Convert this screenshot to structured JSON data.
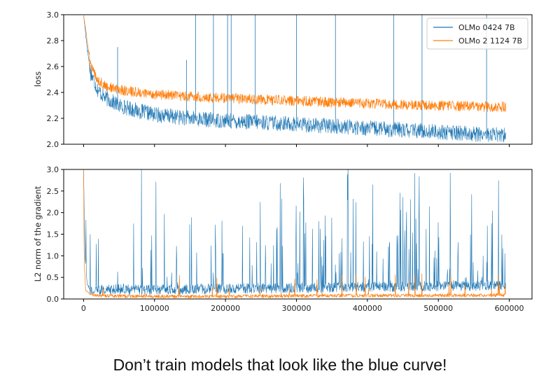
{
  "caption": "Don’t train models that look like the blue curve!",
  "colors": {
    "blue": "#1f77b4",
    "orange": "#ff7f0e"
  },
  "chart_data": [
    {
      "type": "line",
      "title": "",
      "xlabel": "",
      "ylabel": "loss",
      "xlim": [
        -28000,
        632000
      ],
      "ylim": [
        2.0,
        3.0
      ],
      "xticks": [
        0,
        100000,
        200000,
        300000,
        400000,
        500000,
        600000
      ],
      "yticks": [
        2.0,
        2.2,
        2.4,
        2.6,
        2.8,
        3.0
      ],
      "ytick_labels": [
        "2.0",
        "2.2",
        "2.4",
        "2.6",
        "2.8",
        "3.0"
      ],
      "grid": false,
      "legend": "top-right",
      "series": [
        {
          "name": "OLMo 0424 7B",
          "color": "#1f77b4",
          "x": [
            0,
            5000,
            10000,
            20000,
            30000,
            50000,
            75000,
            100000,
            150000,
            200000,
            250000,
            300000,
            350000,
            400000,
            450000,
            500000,
            550000,
            595000
          ],
          "y": [
            3.0,
            2.75,
            2.55,
            2.42,
            2.36,
            2.3,
            2.26,
            2.23,
            2.2,
            2.18,
            2.17,
            2.155,
            2.14,
            2.125,
            2.11,
            2.095,
            2.08,
            2.07
          ],
          "band": 0.06,
          "spikes": [
            {
              "x": 48000,
              "y": 2.75
            },
            {
              "x": 145000,
              "y": 2.65
            },
            {
              "x": 158000,
              "y": 3.0
            },
            {
              "x": 183000,
              "y": 3.0
            },
            {
              "x": 203000,
              "y": 3.0
            },
            {
              "x": 208000,
              "y": 3.0
            },
            {
              "x": 242000,
              "y": 3.0
            },
            {
              "x": 300000,
              "y": 3.0
            },
            {
              "x": 355000,
              "y": 3.0
            },
            {
              "x": 437000,
              "y": 3.0
            },
            {
              "x": 477000,
              "y": 3.0
            },
            {
              "x": 568000,
              "y": 3.0
            }
          ]
        },
        {
          "name": "OLMo 2 1124 7B",
          "color": "#ff7f0e",
          "x": [
            0,
            5000,
            10000,
            20000,
            30000,
            50000,
            75000,
            100000,
            150000,
            200000,
            250000,
            300000,
            350000,
            400000,
            450000,
            500000,
            550000,
            595000
          ],
          "y": [
            3.0,
            2.8,
            2.6,
            2.5,
            2.45,
            2.42,
            2.4,
            2.385,
            2.37,
            2.355,
            2.345,
            2.335,
            2.325,
            2.315,
            2.305,
            2.298,
            2.292,
            2.288
          ],
          "band": 0.04,
          "spikes": []
        }
      ]
    },
    {
      "type": "line",
      "title": "",
      "xlabel": "",
      "ylabel": "L2 norm of the gradient",
      "xlim": [
        -28000,
        632000
      ],
      "ylim": [
        0.0,
        3.0
      ],
      "xticks": [
        0,
        100000,
        200000,
        300000,
        400000,
        500000,
        600000
      ],
      "xtick_labels": [
        "0",
        "100000",
        "200000",
        "300000",
        "400000",
        "500000",
        "600000"
      ],
      "yticks": [
        0.0,
        0.5,
        1.0,
        1.5,
        2.0,
        2.5,
        3.0
      ],
      "ytick_labels": [
        "0.0",
        "0.5",
        "1.0",
        "1.5",
        "2.0",
        "2.5",
        "3.0"
      ],
      "grid": false,
      "series": [
        {
          "name": "OLMo 0424 7B",
          "color": "#1f77b4",
          "x": [
            0,
            2000,
            5000,
            10000,
            20000,
            50000,
            100000,
            200000,
            300000,
            400000,
            500000,
            595000
          ],
          "y": [
            3.0,
            1.0,
            0.35,
            0.22,
            0.21,
            0.22,
            0.22,
            0.24,
            0.26,
            0.28,
            0.3,
            0.32
          ],
          "band": 0.12,
          "spike_density": "many spikes up to 3.0 across the run, increasing toward the end"
        },
        {
          "name": "OLMo 2 1124 7B",
          "color": "#ff7f0e",
          "x": [
            0,
            1000,
            3000,
            10000,
            30000,
            100000,
            200000,
            300000,
            400000,
            500000,
            595000
          ],
          "y": [
            3.0,
            0.8,
            0.2,
            0.1,
            0.07,
            0.06,
            0.06,
            0.07,
            0.08,
            0.08,
            0.09
          ],
          "band": 0.04,
          "spike_density": "occasional small spikes up to about 0.6"
        }
      ]
    }
  ]
}
